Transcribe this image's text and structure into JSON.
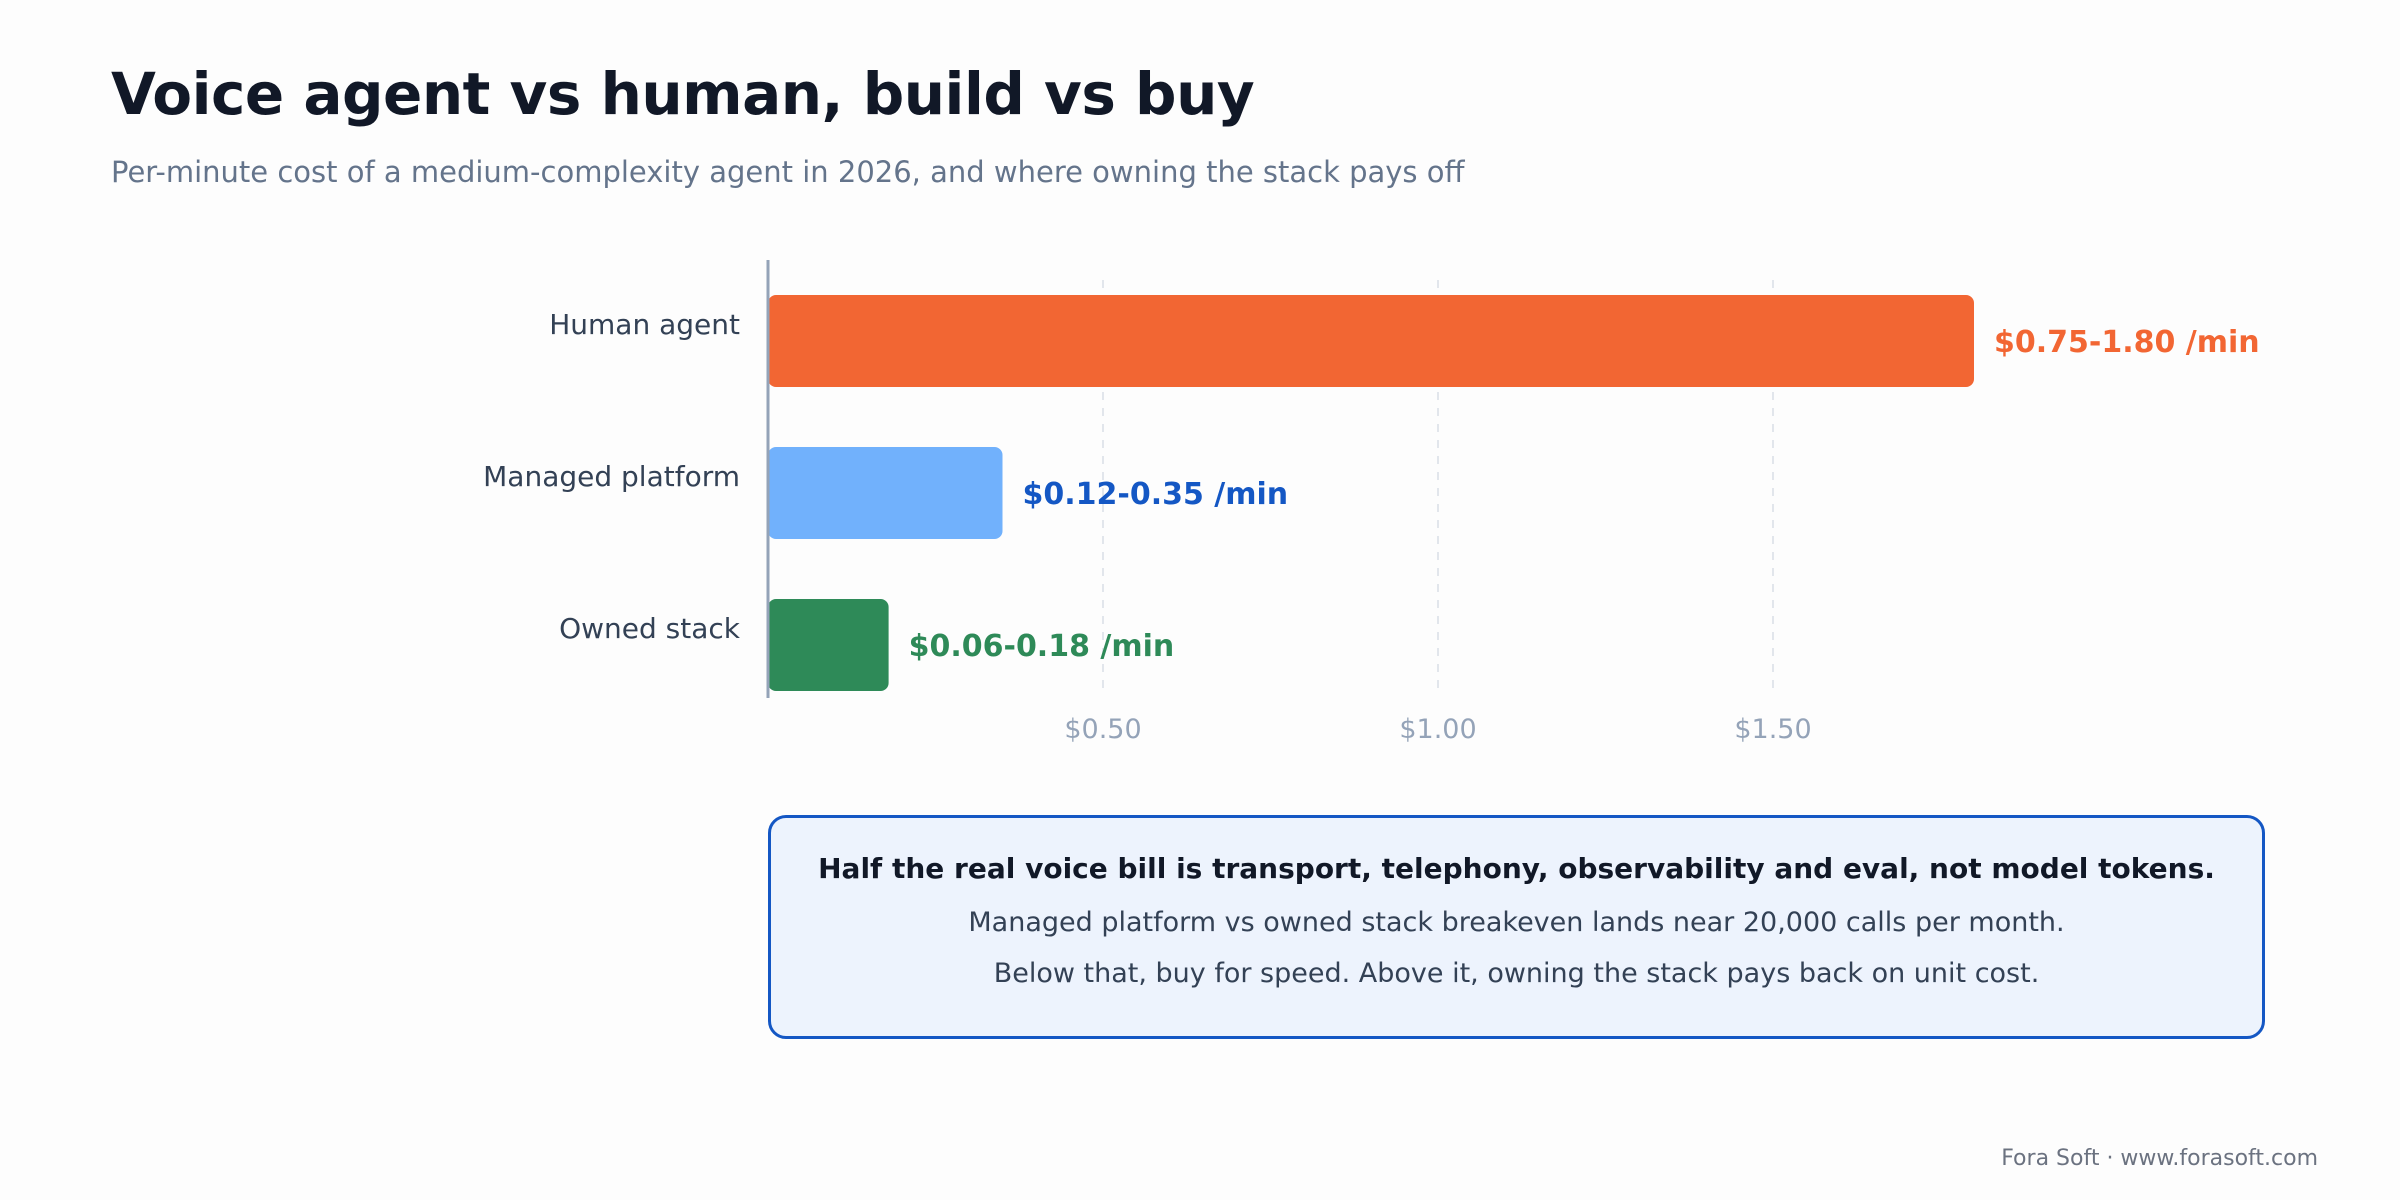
{
  "header": {
    "title": "Voice agent vs human, build vs buy",
    "subtitle": "Per-minute cost of a medium-complexity agent in 2026, and where owning the stack pays off"
  },
  "chart_data": {
    "type": "bar",
    "orientation": "horizontal",
    "categories": [
      "Human agent",
      "Managed platform",
      "Owned stack"
    ],
    "ranges": [
      [
        0.75,
        1.8
      ],
      [
        0.12,
        0.35
      ],
      [
        0.06,
        0.18
      ]
    ],
    "values": [
      1.8,
      0.35,
      0.18
    ],
    "value_labels": [
      "$0.75-1.80 /min",
      "$0.12-0.35 /min",
      "$0.06-0.18 /min"
    ],
    "bar_colors": [
      "#f26633",
      "#71b1fc",
      "#2e8a58"
    ],
    "label_colors": [
      "#f26633",
      "#1457c4",
      "#2e8a58"
    ],
    "x_ticks": [
      0.5,
      1.0,
      1.5
    ],
    "x_tick_labels": [
      "$0.50",
      "$1.00",
      "$1.50"
    ],
    "xlim": [
      0,
      2.2
    ],
    "grid": "vertical dashed",
    "xlabel": "",
    "ylabel": ""
  },
  "callout": {
    "headline": "Half the real voice bill is transport, telephony, observability and eval, not model tokens.",
    "line1": "Managed platform vs owned stack breakeven lands near 20,000 calls per month.",
    "line2": "Below that, buy for speed. Above it, owning the stack pays back on unit cost."
  },
  "footer": {
    "credit": "Fora Soft · www.forasoft.com"
  }
}
